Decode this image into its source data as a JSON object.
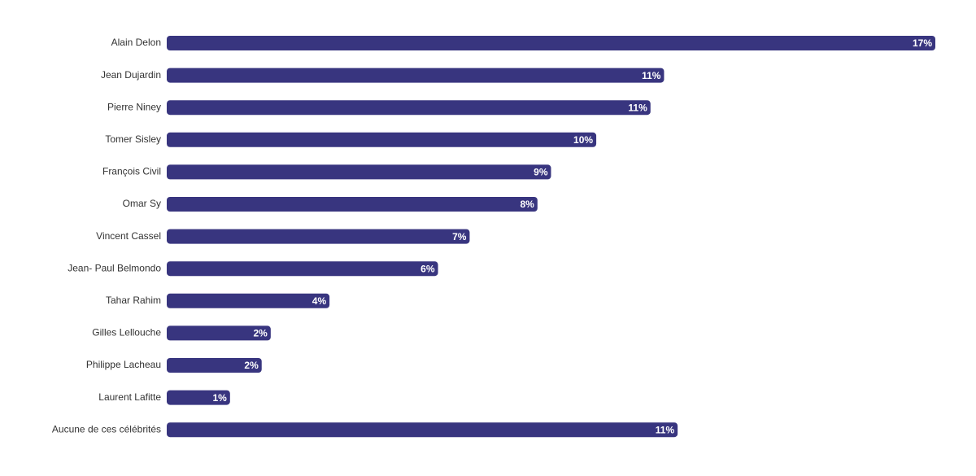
{
  "chart_data": {
    "type": "hbar",
    "categories": [
      "Alain Delon",
      "Jean Dujardin",
      "Pierre Niney",
      "Tomer Sisley",
      "François Civil",
      "Omar Sy",
      "Vincent Cassel",
      "Jean- Paul Belmondo",
      "Tahar Rahim",
      "Gilles Lellouche",
      "Philippe Lacheau",
      "Laurent Lafitte",
      "Aucune de ces célébrités"
    ],
    "values": [
      17,
      11,
      10.7,
      9.5,
      8.5,
      8.2,
      6.7,
      6,
      3.6,
      2.3,
      2.1,
      1.4,
      11.3
    ],
    "value_labels": [
      "17%",
      "11%",
      "11%",
      "10%",
      "9%",
      "8%",
      "7%",
      "6%",
      "4%",
      "2%",
      "2%",
      "1%",
      "11%"
    ],
    "color": "#38357f",
    "xlim": [
      0,
      17
    ]
  }
}
